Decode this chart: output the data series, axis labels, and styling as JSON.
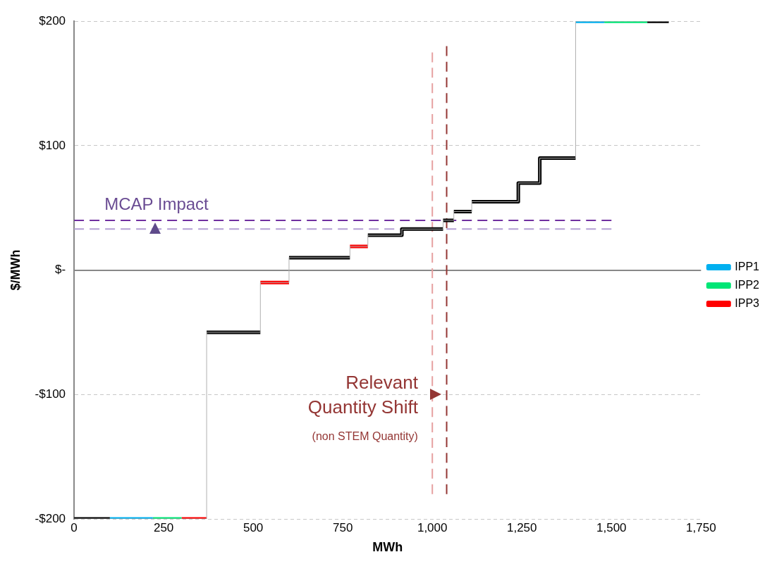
{
  "chart_data": {
    "type": "line",
    "xlabel": "MWh",
    "ylabel": "$/MWh",
    "xlim": [
      0,
      1750
    ],
    "xticks": [
      0,
      250,
      500,
      750,
      {
        "value": 1000,
        "label": "1,000"
      },
      {
        "value": 1250,
        "label": "1,250"
      },
      {
        "value": 1500,
        "label": "1,500"
      },
      {
        "value": 1750,
        "label": "1,750"
      }
    ],
    "ylim": [
      -200,
      200
    ],
    "yticks": [
      {
        "value": -200,
        "label": "-$200"
      },
      {
        "value": -100,
        "label": "-$100"
      },
      {
        "value": 0,
        "label": "$-"
      },
      {
        "value": 100,
        "label": "$100"
      },
      {
        "value": 200,
        "label": "$200"
      }
    ],
    "grid": "y",
    "legend": "right",
    "marker": "none",
    "line_style": "solid",
    "series": [
      {
        "color": "#b0b0b0",
        "x": [
          0,
          370,
          370,
          520,
          520,
          600,
          600,
          770,
          770,
          820,
          820,
          915,
          915,
          1030,
          1030,
          1060,
          1060,
          1110,
          1110,
          1240,
          1240,
          1300,
          1300,
          1400,
          1400,
          1660
        ],
        "values": [
          -200,
          -200,
          -50,
          -50,
          -10,
          -10,
          10,
          10,
          19,
          19,
          28,
          28,
          33,
          33,
          40,
          40,
          47,
          47,
          55,
          55,
          70,
          70,
          90,
          90,
          200,
          200
        ]
      },
      {
        "name": "IPP1",
        "color": "#00b0f0",
        "x": [
          100,
          220,
          null,
          1400,
          1480
        ],
        "values": [
          -200,
          -200,
          null,
          200,
          200
        ]
      },
      {
        "name": "IPP2",
        "color": "#00e676",
        "x": [
          220,
          300,
          null,
          1480,
          1600
        ],
        "values": [
          -200,
          -200,
          null,
          200,
          200
        ]
      },
      {
        "name": "IPP3",
        "color": "#ff0000",
        "x": [
          300,
          370,
          null,
          520,
          600,
          null,
          770,
          820
        ],
        "values": [
          -200,
          -200,
          null,
          -10,
          -10,
          null,
          19,
          19
        ]
      },
      {
        "color": "#000000",
        "x": [
          0,
          100,
          null,
          370,
          520,
          null,
          600,
          770,
          null,
          820,
          915,
          915,
          1030,
          null,
          1030,
          1060,
          null,
          1060,
          1110,
          null,
          1110,
          1240,
          1240,
          1300,
          1300,
          1400,
          null,
          1600,
          1660
        ],
        "values": [
          -200,
          -200,
          null,
          -50,
          -50,
          null,
          10,
          10,
          null,
          28,
          28,
          33,
          33,
          null,
          40,
          40,
          null,
          47,
          47,
          null,
          55,
          55,
          70,
          70,
          90,
          90,
          null,
          200,
          200
        ]
      },
      {
        "color": "#7030a0",
        "line_style": "dashed",
        "x": [
          0,
          1500
        ],
        "values": [
          40,
          40
        ]
      },
      {
        "color": "#b4a0d4",
        "line_style": "dashed",
        "x": [
          0,
          1500
        ],
        "values": [
          33,
          33
        ]
      },
      {
        "color": "#e6a0a0",
        "line_style": "dashed",
        "x": [
          1000,
          1000
        ],
        "values": [
          -180,
          175
        ]
      },
      {
        "color": "#943634",
        "line_style": "dashed",
        "x": [
          1040,
          1040
        ],
        "values": [
          -180,
          180
        ]
      }
    ],
    "annotations": [
      "MCAP Impact",
      "Relevant Quantity Shift",
      "(non STEM Quantity)"
    ]
  }
}
